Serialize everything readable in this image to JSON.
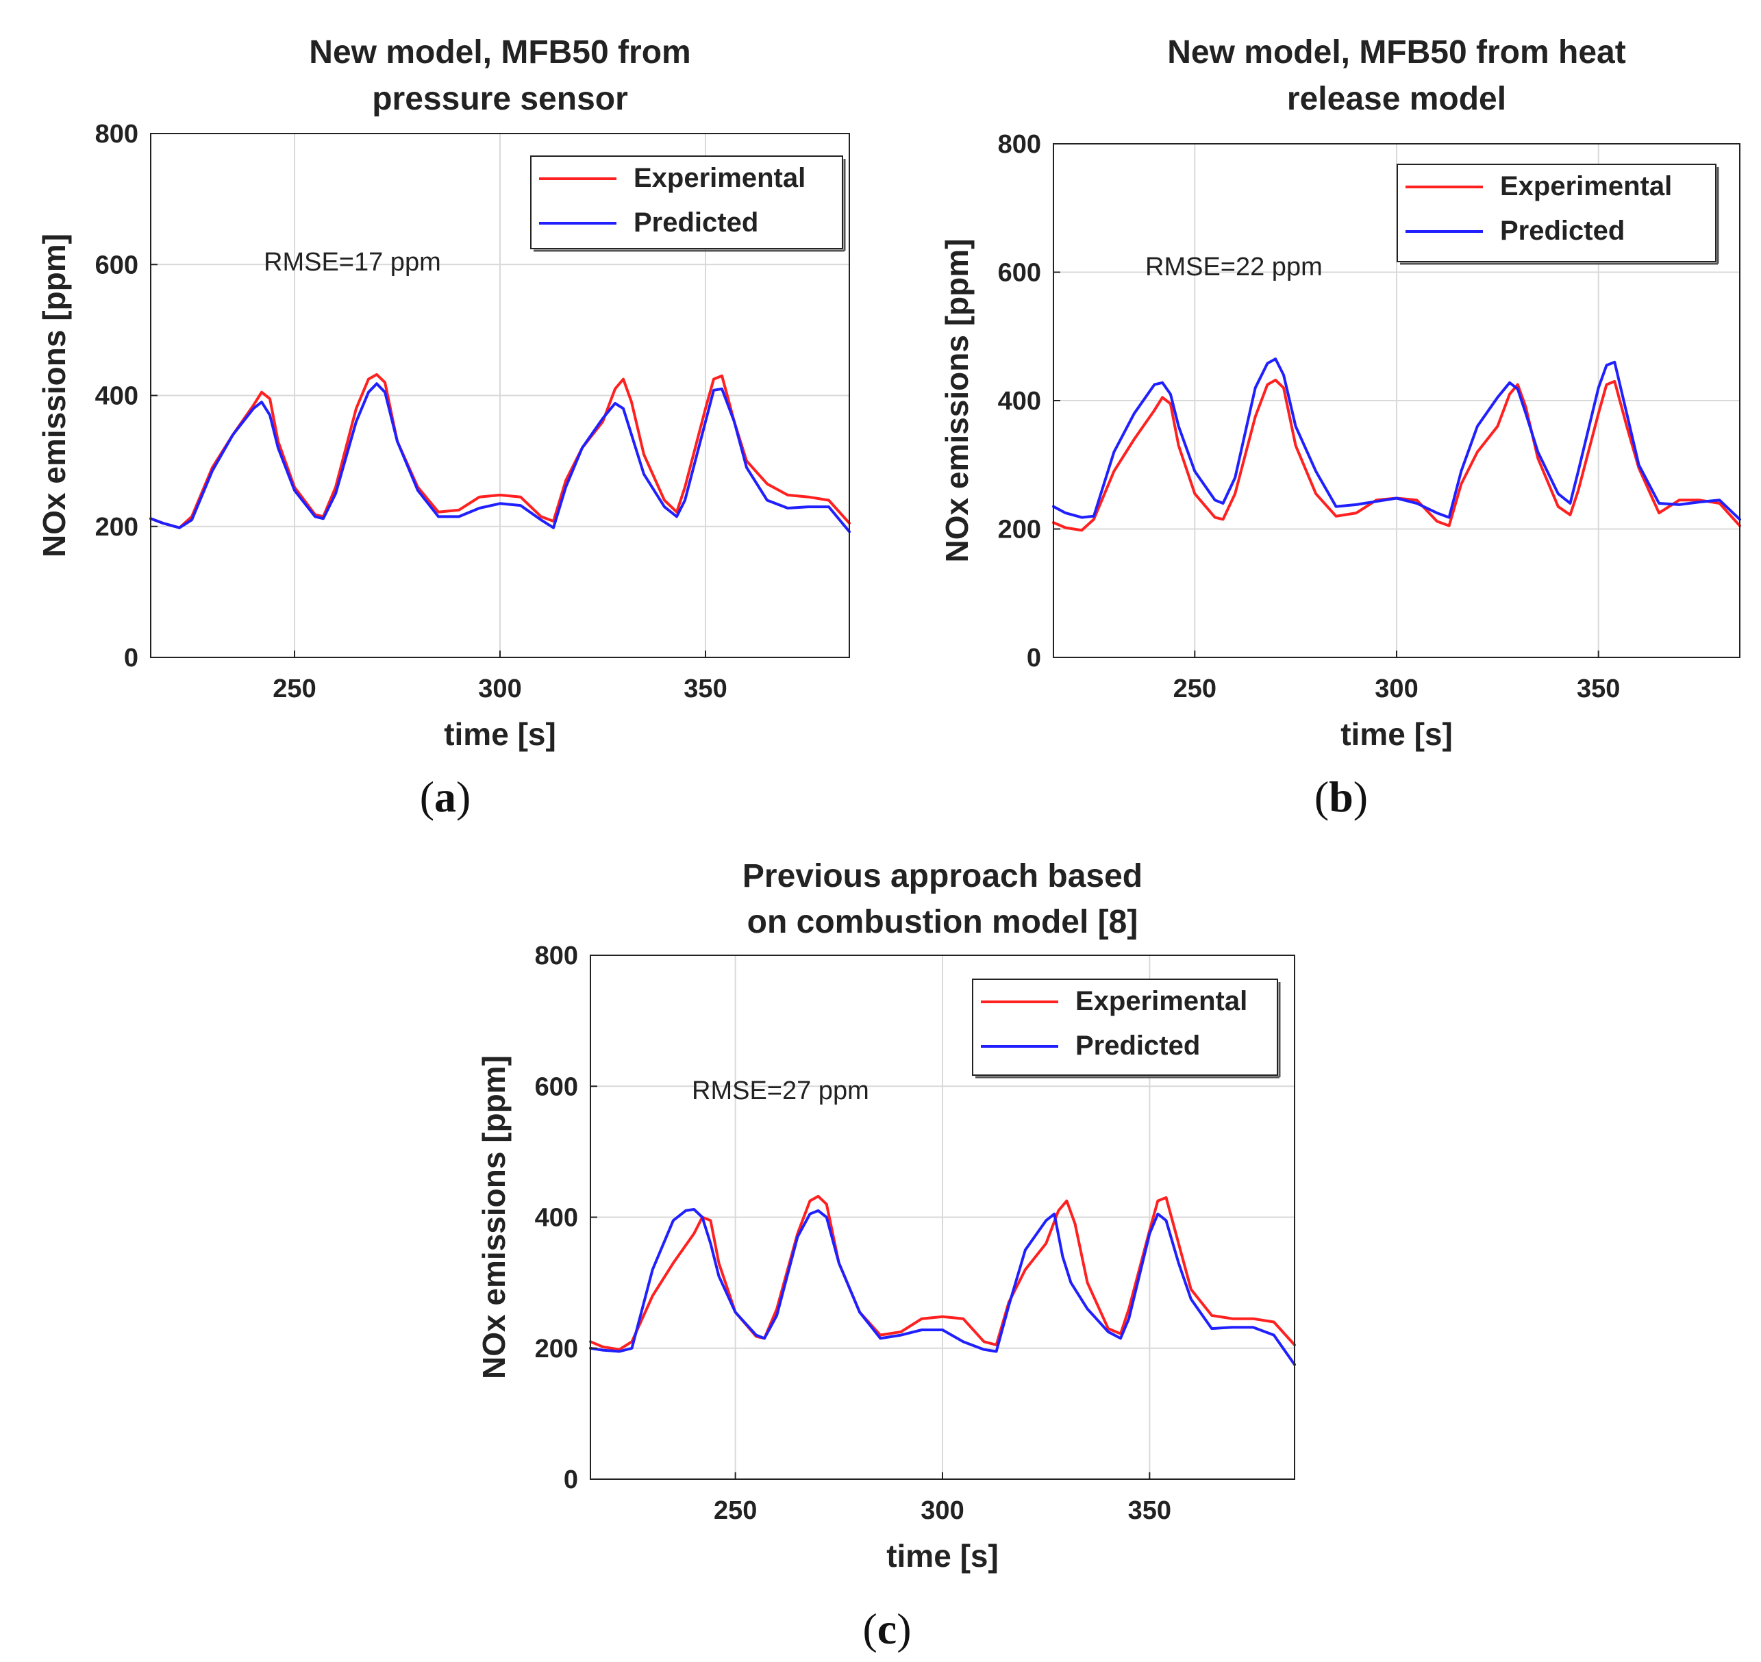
{
  "colors": {
    "experimental": "#ff2020",
    "predicted": "#2020ff",
    "grid": "#d9d9d9",
    "axis": "#222222"
  },
  "chart_data": [
    {
      "id": "a",
      "type": "line",
      "caption_letter": "a",
      "title_lines": [
        "New model, MFB50 from",
        "pressure sensor"
      ],
      "xlabel": "time [s]",
      "ylabel": "NOx emissions [ppm]",
      "xlim": [
        215,
        385
      ],
      "ylim": [
        0,
        800
      ],
      "xticks": [
        250,
        300,
        350
      ],
      "yticks": [
        0,
        200,
        400,
        600,
        800
      ],
      "grid": true,
      "legend_position": "top-right",
      "annotation": "RMSE=17 ppm",
      "series": [
        {
          "name": "Experimental",
          "color": "#ff2020",
          "x": [
            215,
            218,
            222,
            225,
            230,
            235,
            240,
            242,
            244,
            246,
            250,
            255,
            257,
            260,
            265,
            268,
            270,
            272,
            275,
            280,
            285,
            290,
            295,
            300,
            305,
            310,
            313,
            316,
            320,
            325,
            328,
            330,
            332,
            335,
            340,
            343,
            345,
            350,
            352,
            354,
            357,
            360,
            365,
            370,
            375,
            380,
            385
          ],
          "y": [
            212,
            205,
            198,
            215,
            290,
            340,
            385,
            405,
            395,
            330,
            260,
            218,
            215,
            260,
            380,
            425,
            432,
            420,
            330,
            260,
            222,
            225,
            245,
            248,
            245,
            215,
            208,
            270,
            320,
            360,
            410,
            425,
            390,
            310,
            240,
            222,
            260,
            380,
            425,
            430,
            360,
            300,
            265,
            248,
            245,
            240,
            205
          ]
        },
        {
          "name": "Predicted",
          "color": "#2020ff",
          "x": [
            215,
            218,
            222,
            225,
            230,
            235,
            240,
            242,
            244,
            246,
            250,
            255,
            257,
            260,
            265,
            268,
            270,
            272,
            275,
            280,
            285,
            290,
            295,
            300,
            305,
            310,
            313,
            316,
            320,
            325,
            328,
            330,
            332,
            335,
            340,
            343,
            345,
            350,
            352,
            354,
            357,
            360,
            365,
            370,
            375,
            380,
            385
          ],
          "y": [
            212,
            205,
            198,
            210,
            285,
            340,
            380,
            390,
            370,
            320,
            255,
            215,
            212,
            250,
            360,
            405,
            418,
            405,
            330,
            255,
            215,
            215,
            228,
            235,
            232,
            210,
            198,
            260,
            320,
            365,
            388,
            380,
            340,
            280,
            230,
            215,
            240,
            360,
            408,
            410,
            360,
            290,
            240,
            228,
            230,
            230,
            192
          ]
        }
      ]
    },
    {
      "id": "b",
      "type": "line",
      "caption_letter": "b",
      "title_lines": [
        "New model, MFB50 from heat",
        "release model"
      ],
      "xlabel": "time [s]",
      "ylabel": "NOx emissions [ppm]",
      "xlim": [
        215,
        385
      ],
      "ylim": [
        0,
        800
      ],
      "xticks": [
        250,
        300,
        350
      ],
      "yticks": [
        0,
        200,
        400,
        600,
        800
      ],
      "grid": true,
      "legend_position": "top-right",
      "annotation": "RMSE=22 ppm",
      "series": [
        {
          "name": "Experimental",
          "color": "#ff2020",
          "x": [
            215,
            218,
            222,
            225,
            230,
            235,
            240,
            242,
            244,
            246,
            250,
            255,
            257,
            260,
            265,
            268,
            270,
            272,
            275,
            280,
            285,
            290,
            295,
            300,
            305,
            310,
            313,
            316,
            320,
            325,
            328,
            330,
            332,
            335,
            340,
            343,
            345,
            350,
            352,
            354,
            357,
            360,
            365,
            370,
            375,
            380,
            385
          ],
          "y": [
            210,
            202,
            198,
            215,
            290,
            340,
            385,
            405,
            395,
            330,
            255,
            218,
            215,
            255,
            375,
            425,
            432,
            420,
            330,
            255,
            220,
            225,
            245,
            248,
            245,
            212,
            205,
            270,
            320,
            360,
            410,
            425,
            390,
            310,
            235,
            222,
            260,
            380,
            425,
            430,
            360,
            295,
            225,
            245,
            245,
            240,
            205
          ]
        },
        {
          "name": "Predicted",
          "color": "#2020ff",
          "x": [
            215,
            218,
            222,
            225,
            230,
            235,
            240,
            242,
            244,
            246,
            250,
            255,
            257,
            260,
            265,
            268,
            270,
            272,
            275,
            280,
            285,
            290,
            295,
            300,
            305,
            310,
            313,
            316,
            320,
            325,
            328,
            330,
            332,
            335,
            340,
            343,
            345,
            350,
            352,
            354,
            357,
            360,
            365,
            370,
            375,
            380,
            385
          ],
          "y": [
            235,
            225,
            218,
            220,
            320,
            380,
            425,
            428,
            410,
            360,
            290,
            245,
            240,
            280,
            420,
            458,
            465,
            440,
            360,
            290,
            235,
            238,
            243,
            248,
            240,
            225,
            218,
            290,
            360,
            405,
            428,
            418,
            380,
            320,
            255,
            240,
            290,
            420,
            455,
            460,
            380,
            300,
            240,
            238,
            242,
            245,
            215
          ]
        }
      ]
    },
    {
      "id": "c",
      "type": "line",
      "caption_letter": "c",
      "title_lines": [
        "Previous approach based",
        "on combustion model [8]"
      ],
      "xlabel": "time [s]",
      "ylabel": "NOx emissions [ppm]",
      "xlim": [
        215,
        385
      ],
      "ylim": [
        0,
        800
      ],
      "xticks": [
        250,
        300,
        350
      ],
      "yticks": [
        0,
        200,
        400,
        600,
        800
      ],
      "grid": true,
      "legend_position": "top-right",
      "annotation": "RMSE=27 ppm",
      "series": [
        {
          "name": "Experimental",
          "color": "#ff2020",
          "x": [
            215,
            218,
            222,
            225,
            230,
            235,
            240,
            242,
            244,
            246,
            250,
            255,
            257,
            260,
            265,
            268,
            270,
            272,
            275,
            280,
            285,
            290,
            295,
            300,
            305,
            310,
            313,
            316,
            320,
            325,
            328,
            330,
            332,
            335,
            340,
            343,
            345,
            350,
            352,
            354,
            357,
            360,
            365,
            370,
            375,
            380,
            385
          ],
          "y": [
            210,
            202,
            198,
            210,
            280,
            330,
            375,
            400,
            395,
            330,
            255,
            218,
            215,
            260,
            375,
            425,
            432,
            420,
            330,
            255,
            220,
            225,
            245,
            248,
            245,
            210,
            205,
            270,
            320,
            360,
            410,
            425,
            390,
            300,
            230,
            222,
            260,
            380,
            425,
            430,
            360,
            290,
            250,
            245,
            245,
            240,
            205
          ]
        },
        {
          "name": "Predicted",
          "color": "#2020ff",
          "x": [
            215,
            218,
            222,
            225,
            230,
            235,
            238,
            240,
            242,
            244,
            246,
            250,
            255,
            257,
            260,
            265,
            268,
            270,
            272,
            275,
            280,
            285,
            290,
            295,
            300,
            305,
            310,
            313,
            316,
            320,
            325,
            327,
            329,
            331,
            335,
            340,
            343,
            345,
            350,
            352,
            354,
            357,
            360,
            365,
            370,
            375,
            380,
            385
          ],
          "y": [
            200,
            197,
            195,
            200,
            320,
            395,
            410,
            412,
            400,
            360,
            310,
            255,
            220,
            215,
            250,
            370,
            405,
            410,
            400,
            330,
            255,
            215,
            220,
            228,
            228,
            210,
            198,
            195,
            265,
            350,
            395,
            405,
            340,
            300,
            260,
            225,
            215,
            245,
            375,
            405,
            395,
            330,
            275,
            230,
            232,
            232,
            220,
            175
          ]
        }
      ]
    }
  ]
}
